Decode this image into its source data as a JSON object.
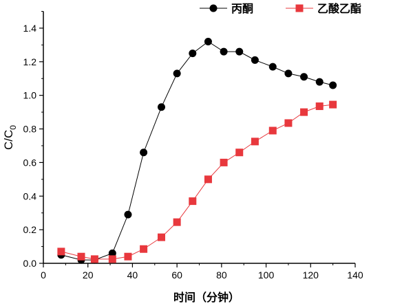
{
  "chart_data": {
    "type": "line",
    "title": "",
    "xlabel": "时间（分钟）",
    "ylabel": "C/C",
    "ylabel_subscript": "0",
    "xlim": [
      0,
      140
    ],
    "ylim": [
      0,
      1.5
    ],
    "xticks": [
      "0",
      "20",
      "40",
      "60",
      "80",
      "100",
      "120",
      "140"
    ],
    "yticks": [
      "0.0",
      "0.2",
      "0.4",
      "0.6",
      "0.8",
      "1.0",
      "1.2",
      "1.4"
    ],
    "grid": false,
    "legend_position": "top",
    "x": [
      8,
      17,
      23,
      31,
      38,
      45,
      53,
      60,
      67,
      74,
      81,
      88,
      95,
      103,
      110,
      117,
      124,
      130
    ],
    "series": [
      {
        "name": "丙酮",
        "marker": "circle",
        "color": "#000000",
        "values": [
          0.05,
          0.02,
          0.02,
          0.06,
          0.29,
          0.66,
          0.93,
          1.13,
          1.25,
          1.32,
          1.26,
          1.26,
          1.21,
          1.17,
          1.13,
          1.11,
          1.08,
          1.06
        ]
      },
      {
        "name": "乙酸乙酯",
        "marker": "square",
        "color": "#e8383d",
        "values": [
          0.07,
          0.04,
          0.025,
          0.025,
          0.04,
          0.085,
          0.155,
          0.245,
          0.37,
          0.5,
          0.6,
          0.66,
          0.725,
          0.79,
          0.835,
          0.9,
          0.935,
          0.945
        ]
      }
    ]
  }
}
